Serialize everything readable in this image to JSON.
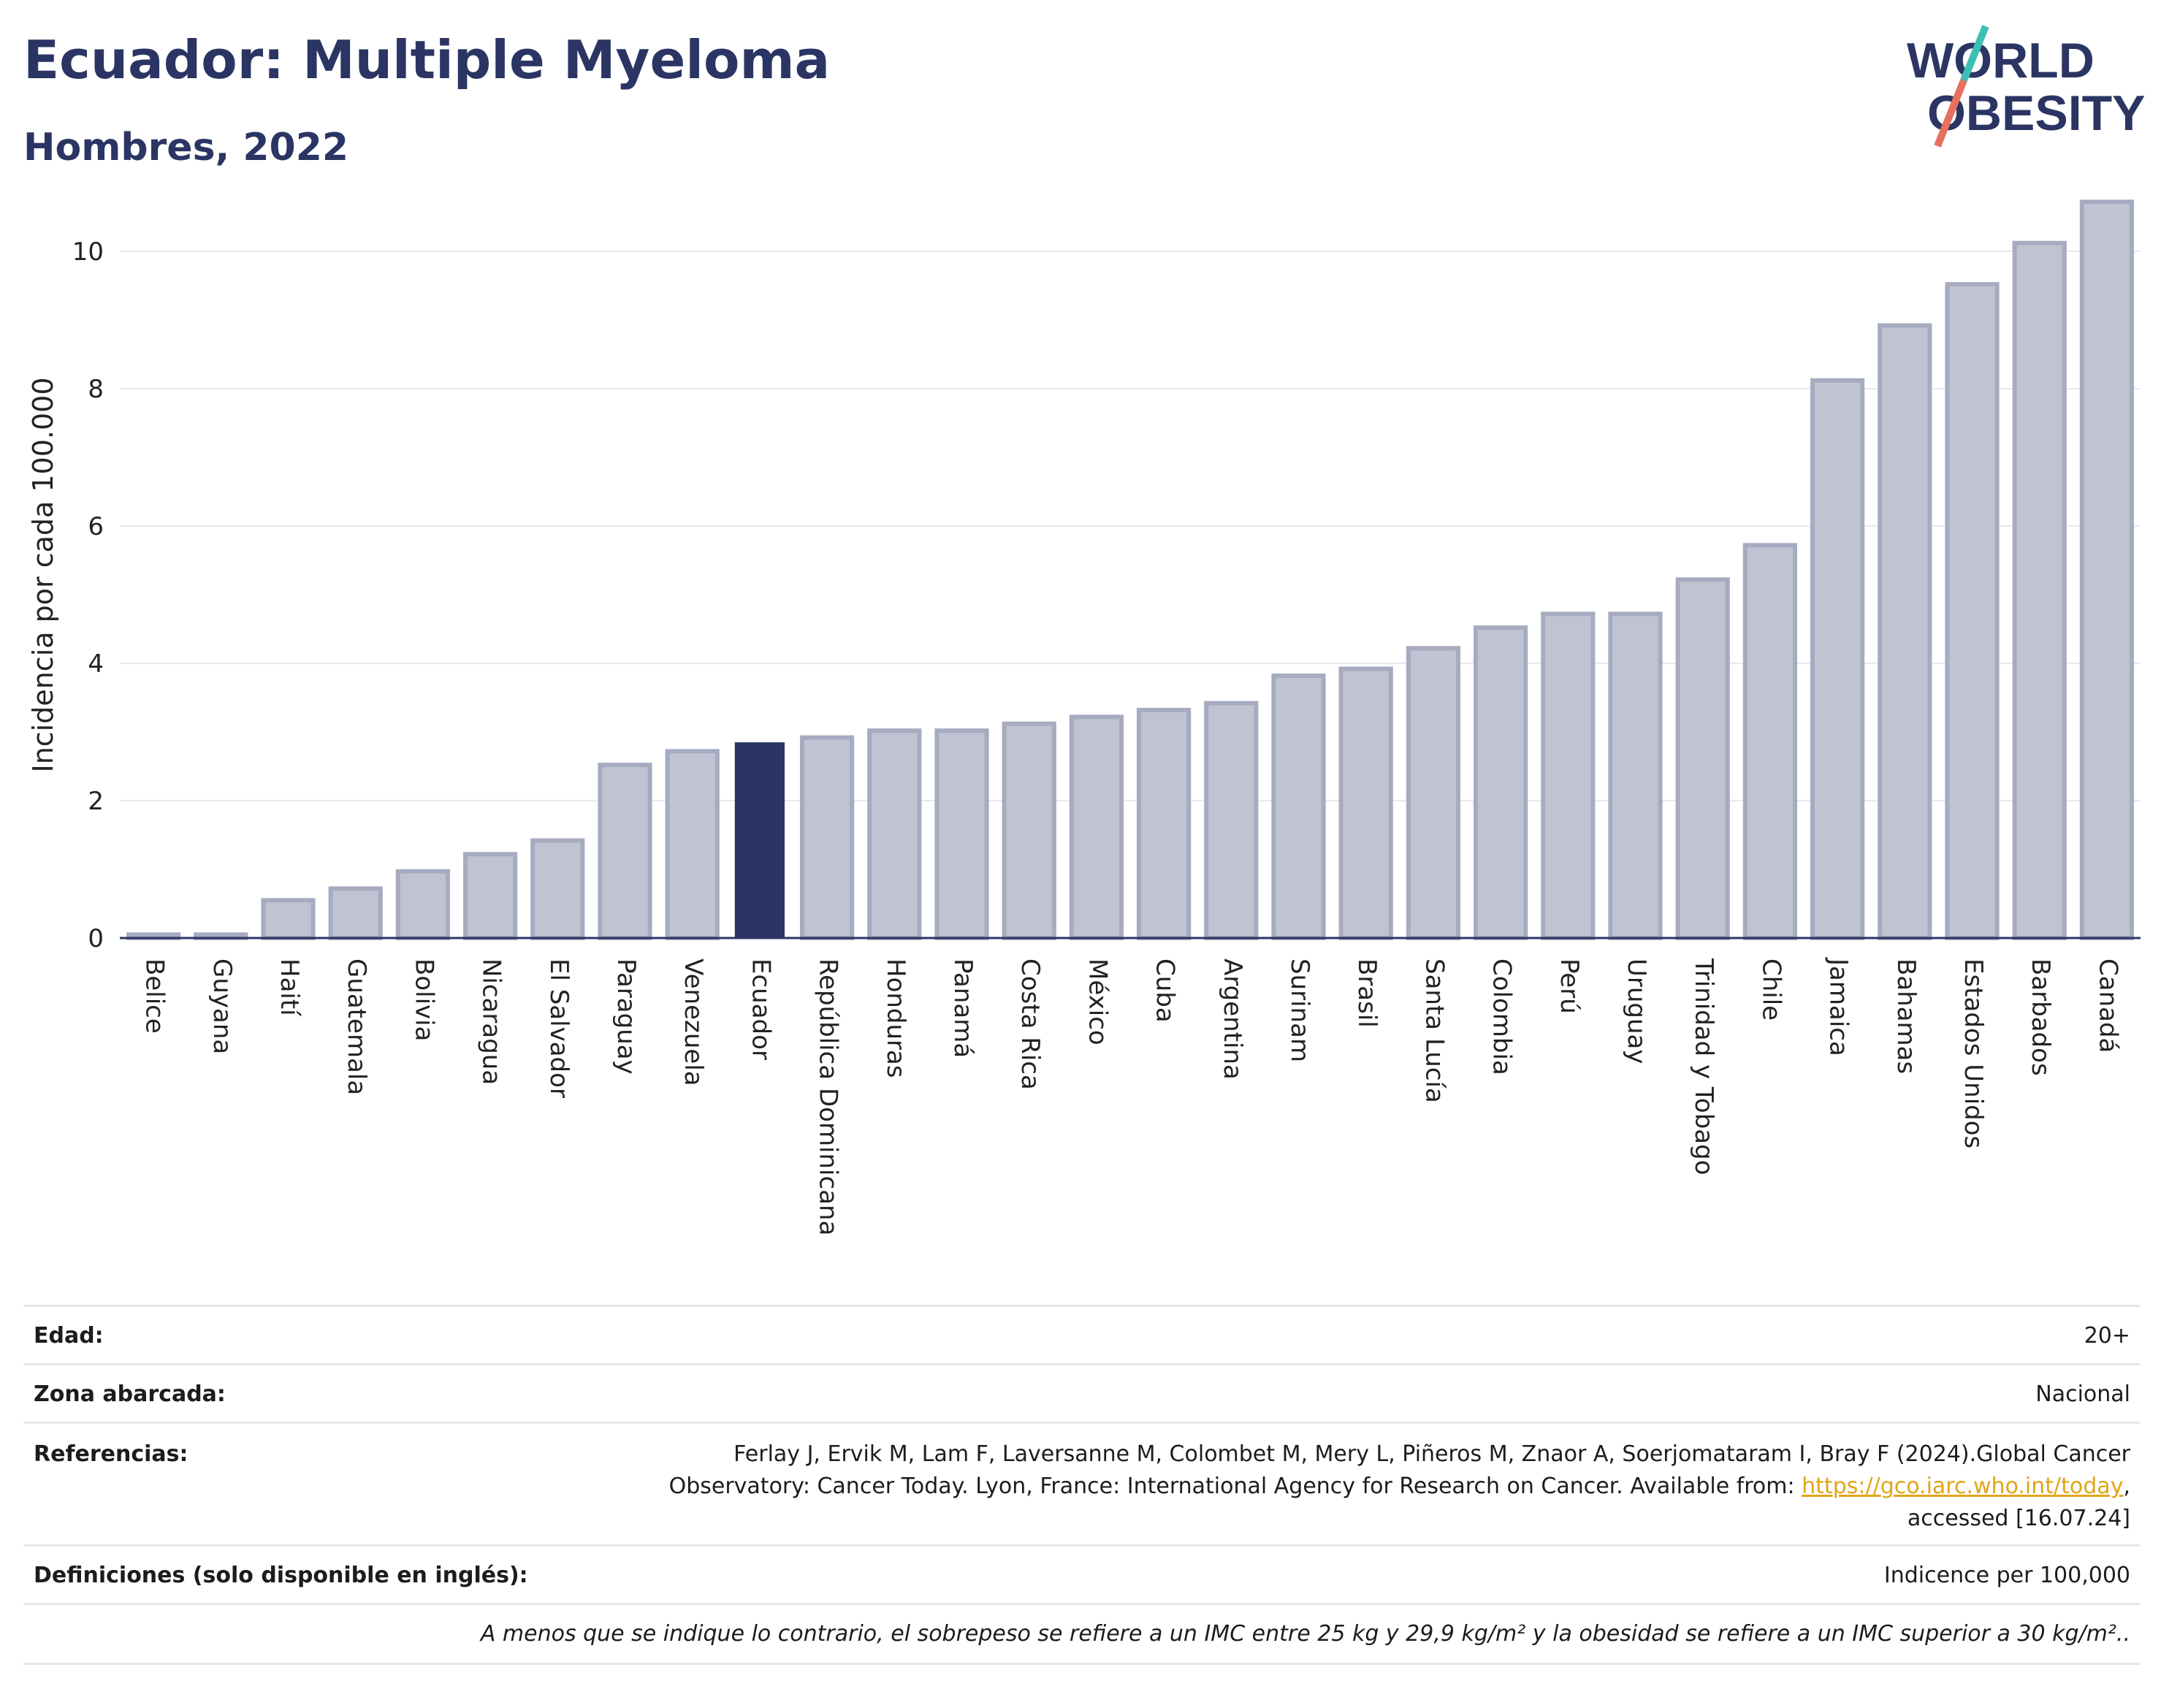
{
  "header": {
    "title": "Ecuador: Multiple Myeloma",
    "subtitle": "Hombres, 2022",
    "logo_text": "WORLD OBESITY"
  },
  "colors": {
    "highlight_bar": "#2b3563",
    "default_bar": "#c0c3d1",
    "default_bar_border": "#a7abc0",
    "grid": "#e8e8ee",
    "logo_text": "#2b3563",
    "logo_slash_teal": "#3dbfb5",
    "logo_slash_coral": "#e8705e"
  },
  "chart_data": {
    "type": "bar",
    "title": "Ecuador: Multiple Myeloma",
    "ylabel": "Incidencia por cada 100.000",
    "xlabel": "",
    "ylim": [
      0,
      11
    ],
    "yticks": [
      0,
      2,
      4,
      6,
      8,
      10
    ],
    "grid": true,
    "highlight": "Ecuador",
    "categories": [
      "Belice",
      "Guyana",
      "Haití",
      "Guatemala",
      "Bolivia",
      "Nicaragua",
      "El Salvador",
      "Paraguay",
      "Venezuela",
      "Ecuador",
      "República Dominicana",
      "Honduras",
      "Panamá",
      "Costa Rica",
      "México",
      "Cuba",
      "Argentina",
      "Surinam",
      "Brasil",
      "Santa Lucía",
      "Colombia",
      "Perú",
      "Uruguay",
      "Trinidad y Tobago",
      "Chile",
      "Jamaica",
      "Bahamas",
      "Estados Unidos",
      "Barbados",
      "Canadá"
    ],
    "values": [
      0.05,
      0.05,
      0.55,
      0.72,
      0.97,
      1.22,
      1.42,
      2.52,
      2.72,
      2.85,
      2.92,
      3.02,
      3.02,
      3.12,
      3.22,
      3.32,
      3.42,
      3.82,
      3.92,
      4.22,
      4.52,
      4.72,
      4.72,
      5.22,
      5.72,
      8.12,
      8.92,
      9.52,
      10.12,
      10.72
    ]
  },
  "info": {
    "age_label": "Edad:",
    "age_value": "20+",
    "zone_label": "Zona abarcada:",
    "zone_value": "Nacional",
    "ref_label": "Referencias:",
    "ref_text_1": "Ferlay J, Ervik M, Lam F, Laversanne M, Colombet M, Mery L, Piñeros M, Znaor A, Soerjomataram I, Bray F (2024).Global Cancer",
    "ref_text_2": "Observatory: Cancer Today. Lyon, France: International Agency for Research on Cancer. Available from: ",
    "ref_link": "https://gco.iarc.who.int/today",
    "ref_text_3": ",",
    "ref_text_4": "accessed [16.07.24]",
    "def_label": "Definiciones (solo disponible en inglés):",
    "def_value": "Indicence per 100,000",
    "note": "A menos que se indique lo contrario, el sobrepeso se refiere a un IMC entre 25 kg y 29,9 kg/m² y la obesidad se refiere a un IMC superior a 30 kg/m².."
  }
}
